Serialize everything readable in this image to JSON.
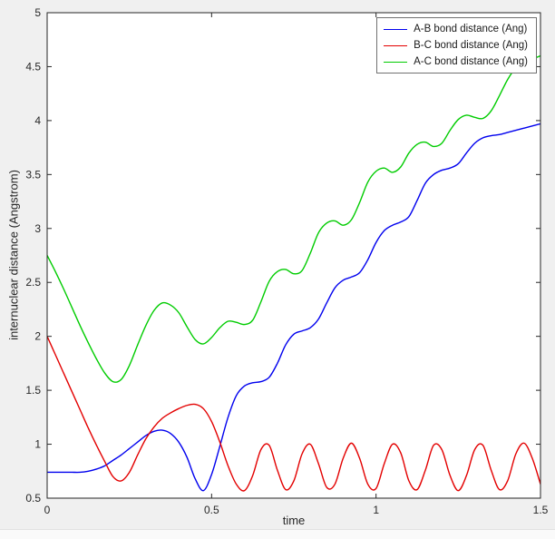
{
  "window": {
    "background": "#f0f0f0",
    "plot_background": "#ffffff",
    "axis_color": "#262626"
  },
  "chart_data": {
    "type": "line",
    "title": "",
    "xlabel": "time",
    "ylabel": "internuclear distance (Angstrom)",
    "xlim": [
      0,
      1.5
    ],
    "ylim": [
      0.5,
      5
    ],
    "x_ticks": [
      "0",
      "0.5",
      "1",
      "1.5"
    ],
    "x_tick_values": [
      0,
      0.5,
      1,
      1.5
    ],
    "y_ticks": [
      "0.5",
      "1",
      "1.5",
      "2",
      "2.5",
      "3",
      "3.5",
      "4",
      "4.5",
      "5"
    ],
    "y_tick_values": [
      0.5,
      1,
      1.5,
      2,
      2.5,
      3,
      3.5,
      4,
      4.5,
      5
    ],
    "grid": false,
    "legend_position": "top-right",
    "x": [
      0,
      0.025,
      0.05,
      0.075,
      0.1,
      0.125,
      0.15,
      0.175,
      0.2,
      0.225,
      0.25,
      0.275,
      0.3,
      0.325,
      0.35,
      0.375,
      0.4,
      0.425,
      0.45,
      0.475,
      0.5,
      0.525,
      0.55,
      0.575,
      0.6,
      0.625,
      0.65,
      0.675,
      0.7,
      0.725,
      0.75,
      0.775,
      0.8,
      0.825,
      0.85,
      0.875,
      0.9,
      0.925,
      0.95,
      0.975,
      1,
      1.025,
      1.05,
      1.075,
      1.1,
      1.125,
      1.15,
      1.175,
      1.2,
      1.225,
      1.25,
      1.275,
      1.3,
      1.325,
      1.35,
      1.375,
      1.4,
      1.425,
      1.45,
      1.475,
      1.5
    ],
    "series": [
      {
        "name": "A-B bond distance (Ang)",
        "color": "#0000ee",
        "values": [
          0.74,
          0.74,
          0.74,
          0.74,
          0.74,
          0.75,
          0.77,
          0.8,
          0.85,
          0.9,
          0.96,
          1.02,
          1.08,
          1.12,
          1.13,
          1.1,
          1.02,
          0.88,
          0.68,
          0.57,
          0.72,
          0.98,
          1.25,
          1.45,
          1.54,
          1.57,
          1.58,
          1.62,
          1.75,
          1.92,
          2.02,
          2.05,
          2.08,
          2.16,
          2.31,
          2.45,
          2.52,
          2.55,
          2.59,
          2.71,
          2.87,
          2.98,
          3.03,
          3.06,
          3.11,
          3.26,
          3.42,
          3.5,
          3.54,
          3.56,
          3.6,
          3.7,
          3.79,
          3.84,
          3.86,
          3.87,
          3.89,
          3.91,
          3.93,
          3.95,
          3.97
        ]
      },
      {
        "name": "B-C bond distance (Ang)",
        "color": "#e30000",
        "values": [
          2.0,
          1.83,
          1.66,
          1.49,
          1.32,
          1.15,
          0.99,
          0.84,
          0.7,
          0.66,
          0.74,
          0.9,
          1.05,
          1.16,
          1.24,
          1.29,
          1.33,
          1.36,
          1.37,
          1.33,
          1.21,
          1.02,
          0.8,
          0.63,
          0.57,
          0.71,
          0.95,
          0.99,
          0.76,
          0.58,
          0.66,
          0.91,
          1.0,
          0.82,
          0.6,
          0.63,
          0.87,
          1.01,
          0.87,
          0.63,
          0.59,
          0.82,
          1.0,
          0.92,
          0.66,
          0.58,
          0.76,
          0.99,
          0.95,
          0.71,
          0.57,
          0.71,
          0.95,
          0.99,
          0.76,
          0.58,
          0.66,
          0.91,
          1.01,
          0.87,
          0.63
        ]
      },
      {
        "name": "A-C bond distance (Ang)",
        "color": "#00cc00",
        "values": [
          2.75,
          2.6,
          2.44,
          2.27,
          2.1,
          1.94,
          1.79,
          1.66,
          1.58,
          1.6,
          1.73,
          1.92,
          2.1,
          2.24,
          2.31,
          2.29,
          2.22,
          2.09,
          1.97,
          1.93,
          1.99,
          2.08,
          2.14,
          2.13,
          2.11,
          2.15,
          2.32,
          2.51,
          2.6,
          2.62,
          2.58,
          2.61,
          2.77,
          2.96,
          3.05,
          3.07,
          3.03,
          3.08,
          3.24,
          3.43,
          3.53,
          3.56,
          3.52,
          3.57,
          3.7,
          3.78,
          3.8,
          3.76,
          3.79,
          3.91,
          4.01,
          4.05,
          4.03,
          4.02,
          4.09,
          4.23,
          4.38,
          4.49,
          4.54,
          4.57,
          4.6
        ]
      }
    ]
  }
}
